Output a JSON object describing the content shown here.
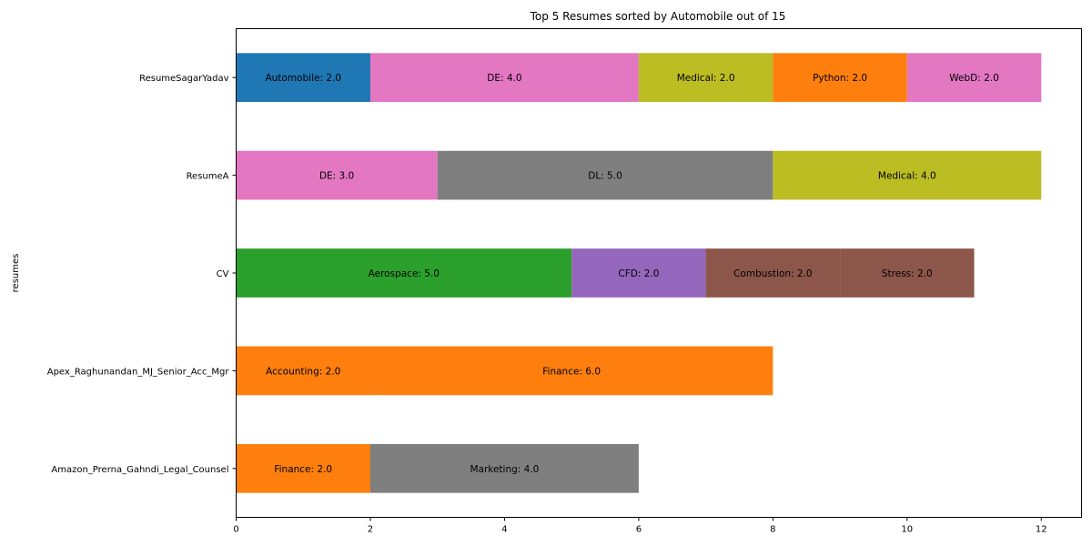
{
  "chart_data": {
    "type": "bar",
    "orientation": "horizontal",
    "stacked": true,
    "title": "Top 5 Resumes sorted by Automobile out of 15",
    "ylabel": "resumes",
    "xlabel": "",
    "xlim": [
      0,
      12.6
    ],
    "xticks": [
      0,
      2,
      4,
      6,
      8,
      10,
      12
    ],
    "grid": false,
    "categories": [
      "ResumeSagarYadav",
      "ResumeA",
      "CV",
      "Apex_Raghunandan_MJ_Senior_Acc_Mgr",
      "Amazon_Prerna_Gahndi_Legal_Counsel"
    ],
    "rows": [
      {
        "category": "ResumeSagarYadav",
        "segments": [
          {
            "label": "Automobile: 2.0",
            "value": 2.0,
            "color": "#1f77b4"
          },
          {
            "label": "DE: 4.0",
            "value": 4.0,
            "color": "#e377c2"
          },
          {
            "label": "Medical: 2.0",
            "value": 2.0,
            "color": "#bcbd22"
          },
          {
            "label": "Python: 2.0",
            "value": 2.0,
            "color": "#ff7f0e"
          },
          {
            "label": "WebD: 2.0",
            "value": 2.0,
            "color": "#e377c2"
          }
        ]
      },
      {
        "category": "ResumeA",
        "segments": [
          {
            "label": "DE: 3.0",
            "value": 3.0,
            "color": "#e377c2"
          },
          {
            "label": "DL: 5.0",
            "value": 5.0,
            "color": "#7f7f7f"
          },
          {
            "label": "Medical: 4.0",
            "value": 4.0,
            "color": "#bcbd22"
          }
        ]
      },
      {
        "category": "CV",
        "segments": [
          {
            "label": "Aerospace: 5.0",
            "value": 5.0,
            "color": "#2ca02c"
          },
          {
            "label": "CFD: 2.0",
            "value": 2.0,
            "color": "#9467bd"
          },
          {
            "label": "Combustion: 2.0",
            "value": 2.0,
            "color": "#8c564b"
          },
          {
            "label": "Stress: 2.0",
            "value": 2.0,
            "color": "#8c564b"
          }
        ]
      },
      {
        "category": "Apex_Raghunandan_MJ_Senior_Acc_Mgr",
        "segments": [
          {
            "label": "Accounting: 2.0",
            "value": 2.0,
            "color": "#ff7f0e"
          },
          {
            "label": "Finance: 6.0",
            "value": 6.0,
            "color": "#ff7f0e"
          }
        ]
      },
      {
        "category": "Amazon_Prerna_Gahndi_Legal_Counsel",
        "segments": [
          {
            "label": "Finance: 2.0",
            "value": 2.0,
            "color": "#ff7f0e"
          },
          {
            "label": "Marketing: 4.0",
            "value": 4.0,
            "color": "#7f7f7f"
          }
        ]
      }
    ]
  }
}
